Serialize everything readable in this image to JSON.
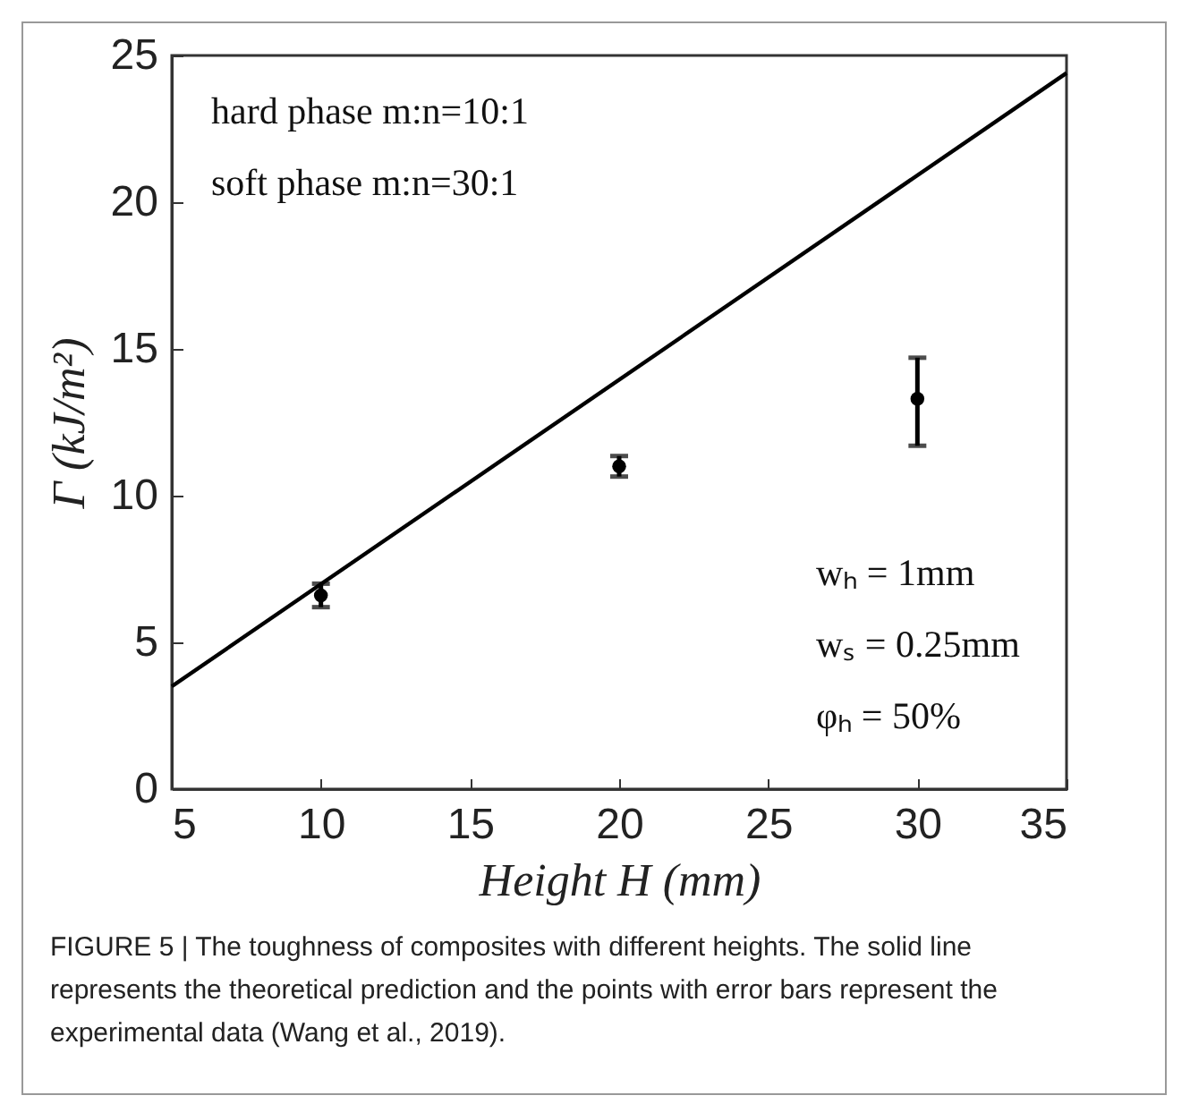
{
  "chart_data": {
    "type": "scatter",
    "xlabel": "Height H (mm)",
    "ylabel": "Γ (kJ/m²)",
    "xlim": [
      5,
      35
    ],
    "xticks": [
      5,
      10,
      15,
      20,
      25,
      30,
      35
    ],
    "ylim": [
      0,
      25
    ],
    "yticks": [
      0,
      5,
      10,
      15,
      20,
      25
    ],
    "grid": false,
    "series": [
      {
        "type": "line",
        "color": "#000000",
        "x": [
          5,
          35
        ],
        "values": [
          3.5,
          24.4
        ]
      },
      {
        "color": "#000000",
        "x": [
          10,
          20,
          30
        ],
        "values": [
          6.6,
          11.0,
          13.3
        ],
        "errors": [
          0.4,
          0.35,
          [
            11.7,
            14.7
          ]
        ],
        "marker": "circle"
      }
    ],
    "annotations": [
      "hard phase m:n=10:1",
      "soft phase m:n=30:1",
      "wₕ = 1mm",
      "wₛ = 0.25mm",
      "φₕ = 50%",
      "FIGURE 5 | The toughness of composites with different heights. The solid line represents the theoretical prediction and the points with error bars represent the experimental data (Wang et al., 2019)."
    ]
  }
}
